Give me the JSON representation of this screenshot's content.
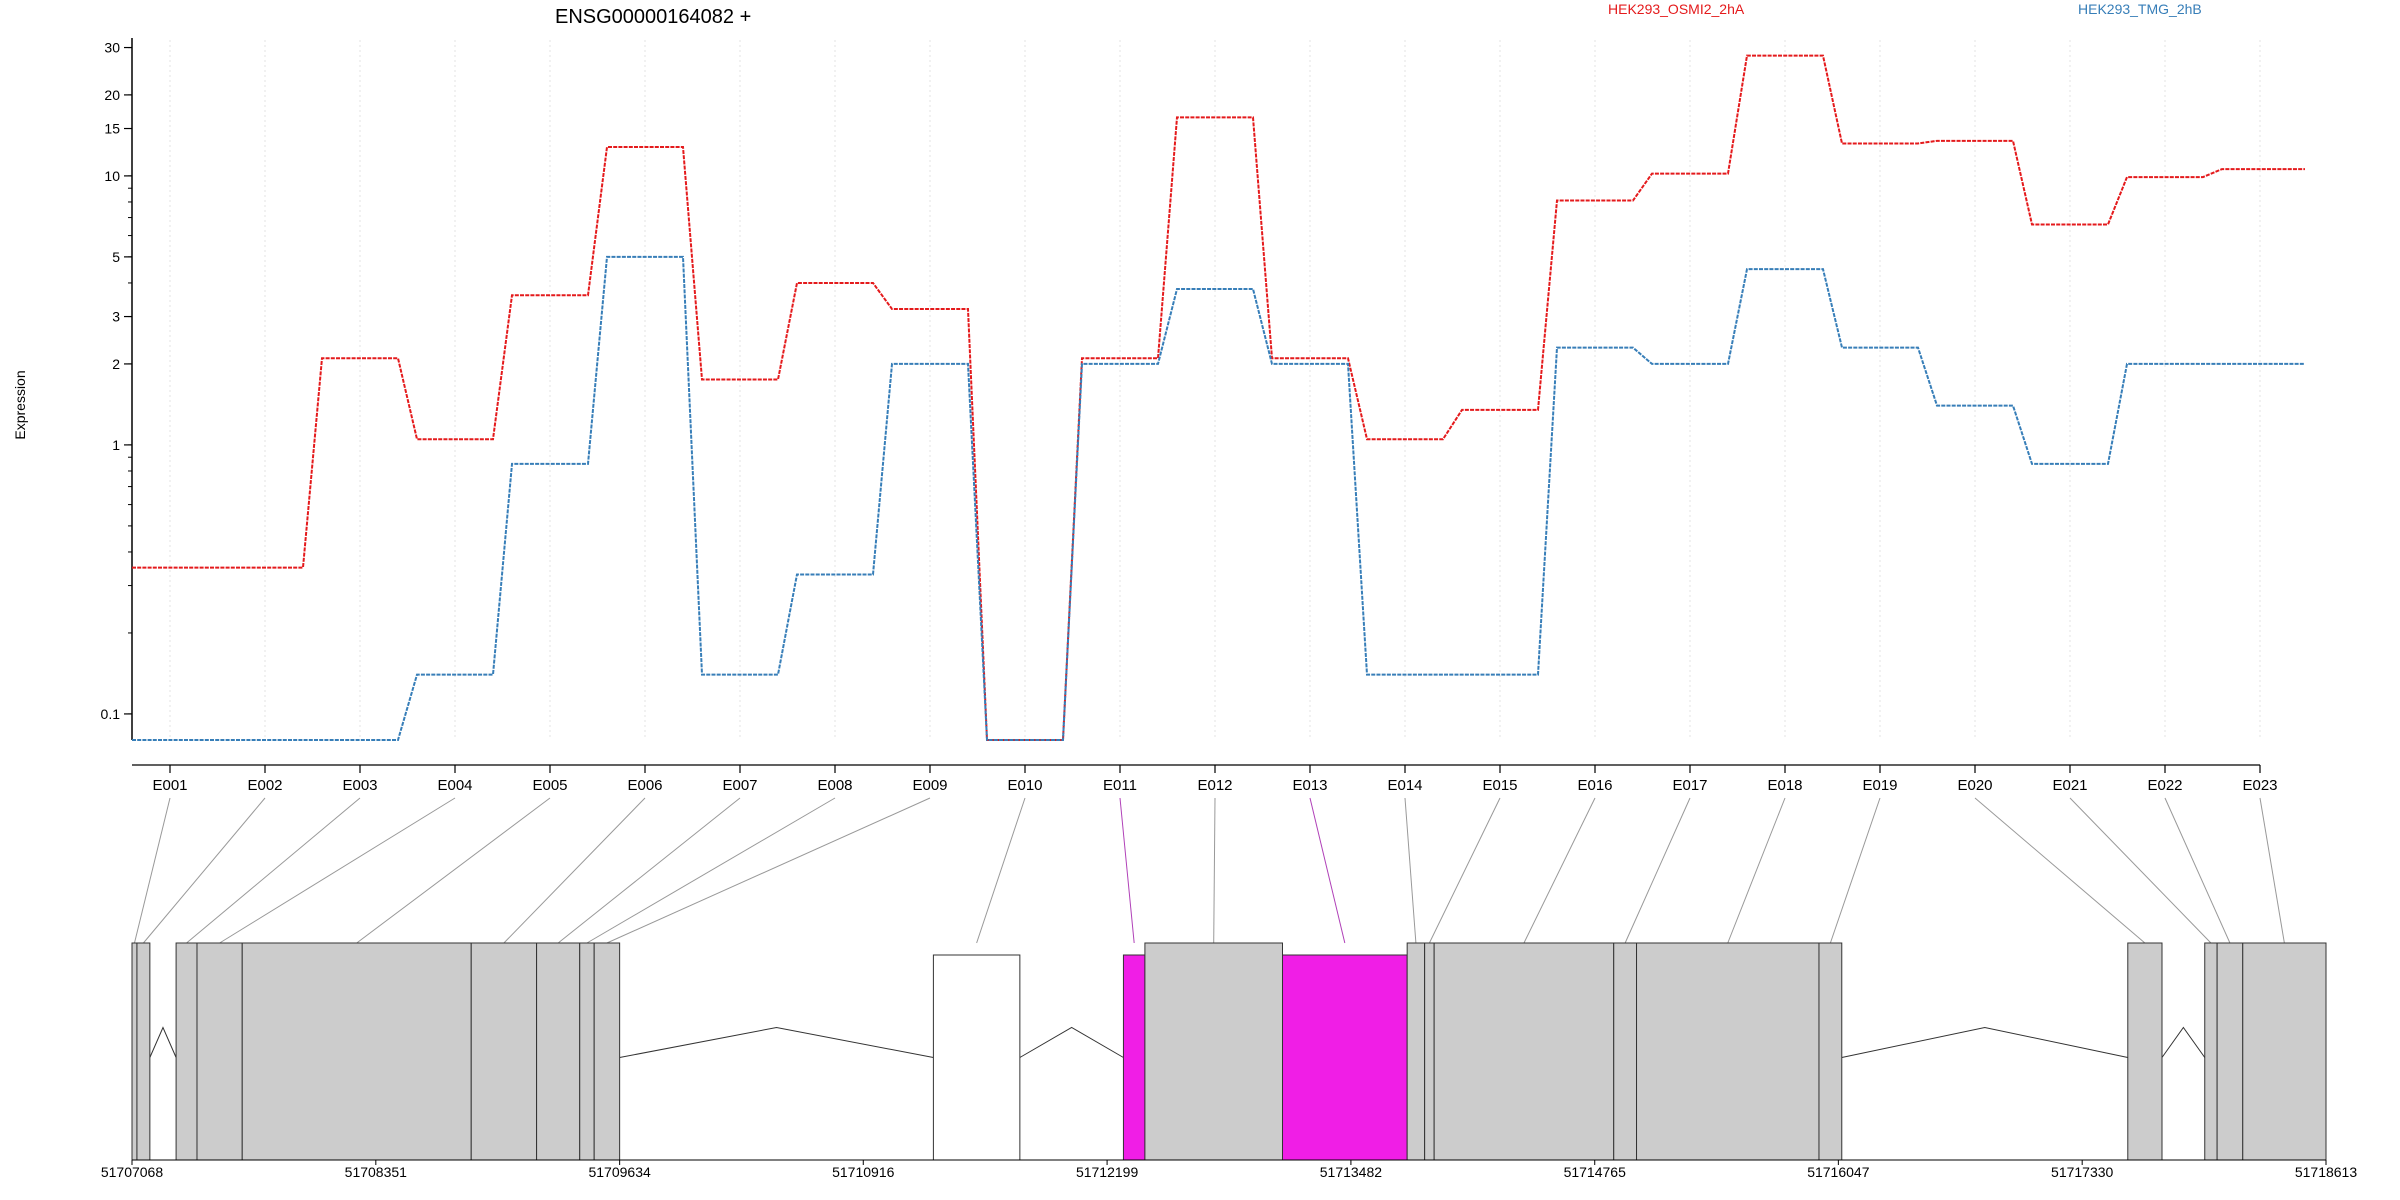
{
  "chart_data": {
    "type": "line",
    "title": "ENSG00000164082 +",
    "ylabel": "Expression",
    "xlabel": "",
    "y_scale": "log",
    "ylim": [
      0.08,
      32
    ],
    "y_ticks": [
      0.1,
      1,
      2,
      3,
      5,
      10,
      15,
      20,
      30
    ],
    "y_tick_labels": [
      "0.1",
      "1",
      "2",
      "3",
      "5",
      "10",
      "15",
      "20",
      "30"
    ],
    "legend_position": "top",
    "grid": "vertical dotted lines at each exon",
    "categories": [
      "E001",
      "E002",
      "E003",
      "E004",
      "E005",
      "E006",
      "E007",
      "E008",
      "E009",
      "E010",
      "E011",
      "E012",
      "E013",
      "E014",
      "E015",
      "E016",
      "E017",
      "E018",
      "E019",
      "E020",
      "E021",
      "E022",
      "E023"
    ],
    "series": [
      {
        "name": "HEK293_OSMI2_2hA",
        "color": "#e41a1c",
        "values": [
          0.35,
          0.35,
          2.1,
          1.05,
          3.6,
          12.8,
          1.75,
          4.0,
          3.2,
          0.08,
          2.1,
          16.5,
          2.1,
          1.05,
          1.35,
          8.1,
          10.2,
          28.0,
          13.2,
          13.5,
          6.6,
          9.9,
          10.6
        ]
      },
      {
        "name": "HEK293_TMG_2hB",
        "color": "#377eb8",
        "values": [
          0.08,
          0.08,
          0.08,
          0.14,
          0.85,
          5.0,
          0.14,
          0.33,
          2.0,
          0.08,
          2.0,
          3.8,
          2.0,
          0.14,
          0.14,
          2.3,
          2.0,
          4.5,
          2.3,
          1.4,
          0.85,
          2.0,
          2.0
        ]
      }
    ],
    "gene_model": {
      "coordinate_ticks": [
        "51707068",
        "51708351",
        "51709634",
        "51710916",
        "51712199",
        "51713482",
        "51714765",
        "51716047",
        "51717330",
        "51718613"
      ],
      "exons": [
        {
          "id": "E001",
          "start": 51707068,
          "end": 51707094,
          "fill": "gray"
        },
        {
          "id": "E002",
          "start": 51707094,
          "end": 51707162,
          "fill": "gray"
        },
        {
          "id": "E003",
          "start": 51707300,
          "end": 51707410,
          "fill": "gray"
        },
        {
          "id": "E004",
          "start": 51707410,
          "end": 51707648,
          "fill": "gray"
        },
        {
          "id": "E005",
          "start": 51707648,
          "end": 51708853,
          "fill": "gray"
        },
        {
          "id": "E006",
          "start": 51708853,
          "end": 51709197,
          "fill": "gray"
        },
        {
          "id": "E007",
          "start": 51709197,
          "end": 51709424,
          "fill": "gray"
        },
        {
          "id": "E008",
          "start": 51709424,
          "end": 51709500,
          "fill": "gray"
        },
        {
          "id": "E009",
          "start": 51709500,
          "end": 51709634,
          "fill": "gray"
        },
        {
          "id": "E010",
          "start": 51711285,
          "end": 51711740,
          "fill": "white"
        },
        {
          "id": "E011",
          "start": 51712285,
          "end": 51712398,
          "fill": "magenta"
        },
        {
          "id": "E012",
          "start": 51712398,
          "end": 51713122,
          "fill": "gray"
        },
        {
          "id": "E013",
          "start": 51713122,
          "end": 51713778,
          "fill": "magenta"
        },
        {
          "id": "E014",
          "start": 51713778,
          "end": 51713870,
          "fill": "gray"
        },
        {
          "id": "E015",
          "start": 51713870,
          "end": 51713920,
          "fill": "gray"
        },
        {
          "id": "E016",
          "start": 51713920,
          "end": 51714865,
          "fill": "gray"
        },
        {
          "id": "E017",
          "start": 51714865,
          "end": 51714985,
          "fill": "gray"
        },
        {
          "id": "E018",
          "start": 51714985,
          "end": 51715945,
          "fill": "gray"
        },
        {
          "id": "E019",
          "start": 51715945,
          "end": 51716065,
          "fill": "gray"
        },
        {
          "id": "E020",
          "start": 51717570,
          "end": 51717750,
          "fill": "gray"
        },
        {
          "id": "E021",
          "start": 51717975,
          "end": 51718040,
          "fill": "gray"
        },
        {
          "id": "E022",
          "start": 51718040,
          "end": 51718175,
          "fill": "gray"
        },
        {
          "id": "E023",
          "start": 51718175,
          "end": 51718613,
          "fill": "gray"
        }
      ],
      "introns": [
        [
          51707162,
          51707300
        ],
        [
          51709634,
          51711285
        ],
        [
          51711740,
          51712285
        ],
        [
          51716065,
          51717570
        ],
        [
          51717750,
          51717975
        ]
      ]
    }
  },
  "colors": {
    "exon_gray": "#cccccc",
    "exon_highlight": "#f01ee6",
    "connector_gray": "#999999",
    "connector_highlight": "#b040b8",
    "grid": "#e3e3e3"
  }
}
